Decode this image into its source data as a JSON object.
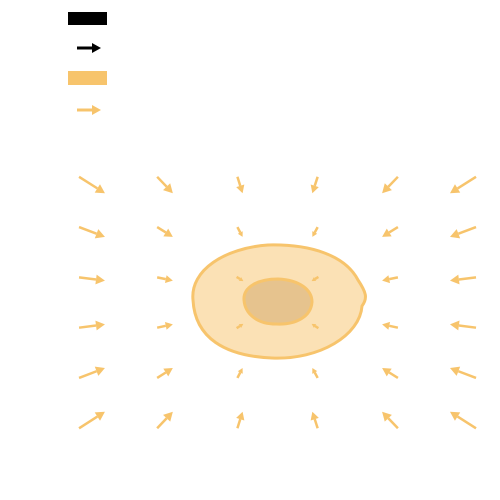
{
  "colors": {
    "dark": "#000000",
    "light": "#f7c46c"
  }
}
